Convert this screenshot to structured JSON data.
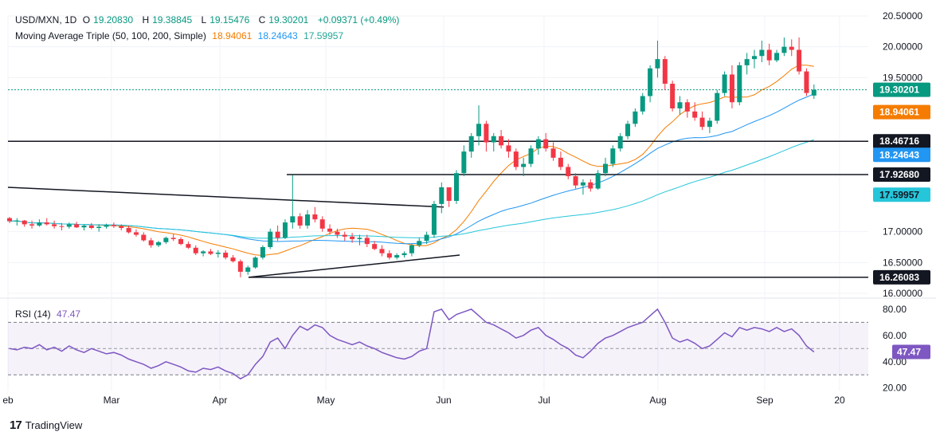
{
  "legend": {
    "symbol": "USD/MXN, 1D",
    "o_label": "O",
    "o": "19.20830",
    "h_label": "H",
    "h": "19.38845",
    "l_label": "L",
    "l": "19.15476",
    "c_label": "C",
    "c": "19.30201",
    "change": "+0.09371 (+0.49%)",
    "ma_title": "Moving Average Triple (50, 100, 200, Simple)",
    "ma50": "18.94061",
    "ma100": "18.24643",
    "ma200": "17.59957",
    "rsi_title": "RSI (14)",
    "rsi_value": "47.47"
  },
  "colors": {
    "up": "#089981",
    "down": "#f23645",
    "ma50": "#f57c00",
    "ma100": "#2196f3",
    "ma200": "#26c6da",
    "rsi": "#7e57c2",
    "level": "#131722",
    "grid": "#f0f3fa"
  },
  "brand": {
    "logo": "17",
    "name": "TradingView"
  },
  "chart_data": [
    {
      "type": "candlestick",
      "title": "USD/MXN, 1D",
      "x_labels": [
        "eb",
        "Mar",
        "Apr",
        "May",
        "Jun",
        "Jul",
        "Aug",
        "Sep",
        "20"
      ],
      "y_ticks": [
        "20.50000",
        "20.00000",
        "19.50000",
        "17.00000",
        "16.50000",
        "16.00000"
      ],
      "ylim": [
        16.0,
        20.5
      ],
      "price_tags": [
        {
          "value": "19.30201",
          "kind": "last"
        },
        {
          "value": "18.94061",
          "kind": "ma50"
        },
        {
          "value": "18.46716",
          "kind": "level"
        },
        {
          "value": "18.24643",
          "kind": "ma100"
        },
        {
          "value": "17.92680",
          "kind": "level"
        },
        {
          "value": "17.59957",
          "kind": "ma200"
        },
        {
          "value": "16.26083",
          "kind": "level"
        }
      ],
      "horizontal_levels": [
        18.46716,
        17.9268,
        16.26083
      ],
      "trendlines": [
        {
          "from": [
            "2024-02-01",
            17.72
          ],
          "to": [
            "2024-05-31",
            17.4
          ]
        },
        {
          "from": [
            "2024-04-09",
            16.26
          ],
          "to": [
            "2024-06-12",
            16.62
          ]
        },
        {
          "from": [
            "2024-04-19",
            17.9268
          ],
          "to": [
            "2024-06-01",
            17.9268
          ]
        }
      ],
      "candles_ohlc": [
        [
          17.22,
          17.24,
          17.14,
          17.17
        ],
        [
          17.17,
          17.22,
          17.1,
          17.18
        ],
        [
          17.18,
          17.19,
          17.08,
          17.12
        ],
        [
          17.12,
          17.18,
          17.05,
          17.1
        ],
        [
          17.1,
          17.2,
          17.08,
          17.15
        ],
        [
          17.15,
          17.22,
          17.1,
          17.12
        ],
        [
          17.12,
          17.18,
          17.05,
          17.09
        ],
        [
          17.09,
          17.14,
          17.02,
          17.08
        ],
        [
          17.08,
          17.15,
          17.05,
          17.12
        ],
        [
          17.12,
          17.16,
          17.06,
          17.07
        ],
        [
          17.07,
          17.12,
          17.02,
          17.1
        ],
        [
          17.1,
          17.14,
          17.04,
          17.06
        ],
        [
          17.06,
          17.12,
          17.0,
          17.08
        ],
        [
          17.08,
          17.13,
          17.05,
          17.11
        ],
        [
          17.11,
          17.15,
          17.06,
          17.09
        ],
        [
          17.09,
          17.12,
          17.02,
          17.06
        ],
        [
          17.06,
          17.1,
          16.97,
          16.99
        ],
        [
          16.99,
          17.04,
          16.92,
          16.95
        ],
        [
          16.95,
          16.99,
          16.84,
          16.86
        ],
        [
          16.86,
          16.9,
          16.74,
          16.78
        ],
        [
          16.78,
          16.85,
          16.75,
          16.83
        ],
        [
          16.83,
          16.92,
          16.8,
          16.9
        ],
        [
          16.9,
          16.96,
          16.85,
          16.88
        ],
        [
          16.88,
          16.91,
          16.78,
          16.8
        ],
        [
          16.8,
          16.84,
          16.72,
          16.74
        ],
        [
          16.74,
          16.78,
          16.62,
          16.65
        ],
        [
          16.65,
          16.7,
          16.6,
          16.68
        ],
        [
          16.68,
          16.72,
          16.62,
          16.64
        ],
        [
          16.64,
          16.7,
          16.58,
          16.66
        ],
        [
          16.66,
          16.7,
          16.55,
          16.58
        ],
        [
          16.58,
          16.62,
          16.5,
          16.52
        ],
        [
          16.52,
          16.55,
          16.26,
          16.35
        ],
        [
          16.35,
          16.45,
          16.3,
          16.42
        ],
        [
          16.42,
          16.6,
          16.4,
          16.58
        ],
        [
          16.58,
          16.78,
          16.55,
          16.75
        ],
        [
          16.75,
          17.05,
          16.72,
          17.0
        ],
        [
          17.0,
          17.1,
          16.85,
          16.9
        ],
        [
          16.9,
          17.2,
          16.88,
          17.15
        ],
        [
          17.15,
          17.92,
          17.05,
          17.25
        ],
        [
          17.25,
          17.3,
          17.05,
          17.1
        ],
        [
          17.1,
          17.35,
          17.05,
          17.28
        ],
        [
          17.28,
          17.4,
          17.15,
          17.2
        ],
        [
          17.2,
          17.25,
          17.0,
          17.05
        ],
        [
          17.05,
          17.12,
          16.95,
          17.0
        ],
        [
          17.0,
          17.05,
          16.9,
          16.95
        ],
        [
          16.95,
          17.0,
          16.85,
          16.92
        ],
        [
          16.92,
          16.98,
          16.82,
          16.88
        ],
        [
          16.88,
          16.95,
          16.78,
          16.9
        ],
        [
          16.9,
          16.95,
          16.75,
          16.8
        ],
        [
          16.8,
          16.85,
          16.7,
          16.72
        ],
        [
          16.72,
          16.78,
          16.6,
          16.65
        ],
        [
          16.65,
          16.7,
          16.55,
          16.58
        ],
        [
          16.58,
          16.65,
          16.55,
          16.62
        ],
        [
          16.62,
          16.68,
          16.58,
          16.65
        ],
        [
          16.65,
          16.8,
          16.6,
          16.78
        ],
        [
          16.78,
          16.9,
          16.75,
          16.85
        ],
        [
          16.85,
          17.0,
          16.8,
          16.95
        ],
        [
          16.95,
          17.5,
          16.9,
          17.45
        ],
        [
          17.45,
          17.8,
          17.3,
          17.72
        ],
        [
          17.72,
          17.6,
          17.4,
          17.5
        ],
        [
          17.5,
          18.0,
          17.45,
          17.95
        ],
        [
          17.95,
          18.4,
          17.9,
          18.3
        ],
        [
          18.3,
          18.6,
          18.2,
          18.55
        ],
        [
          18.55,
          19.05,
          18.4,
          18.75
        ],
        [
          18.75,
          18.8,
          18.3,
          18.45
        ],
        [
          18.45,
          18.6,
          18.3,
          18.55
        ],
        [
          18.55,
          18.65,
          18.35,
          18.4
        ],
        [
          18.4,
          18.5,
          18.2,
          18.3
        ],
        [
          18.3,
          18.35,
          18.0,
          18.05
        ],
        [
          18.05,
          18.2,
          17.9,
          18.1
        ],
        [
          18.1,
          18.4,
          18.05,
          18.35
        ],
        [
          18.35,
          18.55,
          18.25,
          18.5
        ],
        [
          18.5,
          18.6,
          18.3,
          18.35
        ],
        [
          18.35,
          18.45,
          18.15,
          18.2
        ],
        [
          18.2,
          18.3,
          18.0,
          18.05
        ],
        [
          18.05,
          18.1,
          17.85,
          17.9
        ],
        [
          17.9,
          17.95,
          17.7,
          17.75
        ],
        [
          17.75,
          17.85,
          17.6,
          17.8
        ],
        [
          17.8,
          17.85,
          17.65,
          17.7
        ],
        [
          17.7,
          18.0,
          17.68,
          17.95
        ],
        [
          17.95,
          18.2,
          17.9,
          18.1
        ],
        [
          18.1,
          18.4,
          18.05,
          18.35
        ],
        [
          18.35,
          18.6,
          18.3,
          18.55
        ],
        [
          18.55,
          18.8,
          18.5,
          18.75
        ],
        [
          18.75,
          19.0,
          18.7,
          18.95
        ],
        [
          18.95,
          19.25,
          18.9,
          19.2
        ],
        [
          19.2,
          19.7,
          19.1,
          19.65
        ],
        [
          19.65,
          20.1,
          19.5,
          19.8
        ],
        [
          19.8,
          19.85,
          19.3,
          19.4
        ],
        [
          19.4,
          19.45,
          18.95,
          19.0
        ],
        [
          19.0,
          19.2,
          18.9,
          19.1
        ],
        [
          19.1,
          19.15,
          18.85,
          18.95
        ],
        [
          18.95,
          19.1,
          18.8,
          18.85
        ],
        [
          18.85,
          18.95,
          18.65,
          18.7
        ],
        [
          18.7,
          18.85,
          18.6,
          18.8
        ],
        [
          18.8,
          19.3,
          18.75,
          19.25
        ],
        [
          19.25,
          19.6,
          19.2,
          19.55
        ],
        [
          19.55,
          19.7,
          19.0,
          19.1
        ],
        [
          19.1,
          19.75,
          19.05,
          19.7
        ],
        [
          19.7,
          19.9,
          19.55,
          19.8
        ],
        [
          19.8,
          19.95,
          19.65,
          19.85
        ],
        [
          19.85,
          20.1,
          19.75,
          19.95
        ],
        [
          19.95,
          20.05,
          19.7,
          19.78
        ],
        [
          19.78,
          19.95,
          19.75,
          19.9
        ],
        [
          19.9,
          20.15,
          19.85,
          20.0
        ],
        [
          20.0,
          20.12,
          19.85,
          19.95
        ],
        [
          19.95,
          20.15,
          19.55,
          19.6
        ],
        [
          19.6,
          19.65,
          19.2,
          19.25
        ],
        [
          19.2083,
          19.38845,
          19.15476,
          19.30201
        ]
      ]
    },
    {
      "type": "line",
      "title": "RSI (14)",
      "y_ticks": [
        "80.00",
        "60.00",
        "40.00",
        "20.00"
      ],
      "ylim": [
        20,
        85
      ],
      "bands": [
        70,
        50,
        30
      ],
      "last_value": "47.47",
      "values": [
        50,
        49,
        51,
        50,
        53,
        49,
        51,
        48,
        52,
        49,
        47,
        50,
        48,
        46,
        47,
        45,
        42,
        40,
        38,
        35,
        37,
        40,
        38,
        36,
        33,
        32,
        35,
        34,
        36,
        33,
        31,
        27,
        30,
        38,
        44,
        55,
        58,
        50,
        60,
        67,
        64,
        68,
        66,
        60,
        57,
        55,
        53,
        55,
        52,
        50,
        47,
        45,
        43,
        42,
        44,
        48,
        50,
        78,
        80,
        72,
        76,
        78,
        80,
        75,
        70,
        68,
        65,
        62,
        58,
        60,
        64,
        66,
        60,
        57,
        53,
        50,
        45,
        43,
        48,
        54,
        58,
        60,
        63,
        66,
        68,
        70,
        75,
        80,
        70,
        58,
        55,
        57,
        54,
        50,
        52,
        57,
        62,
        59,
        66,
        64,
        66,
        65,
        63,
        66,
        63,
        65,
        60,
        52,
        47.47
      ]
    }
  ]
}
